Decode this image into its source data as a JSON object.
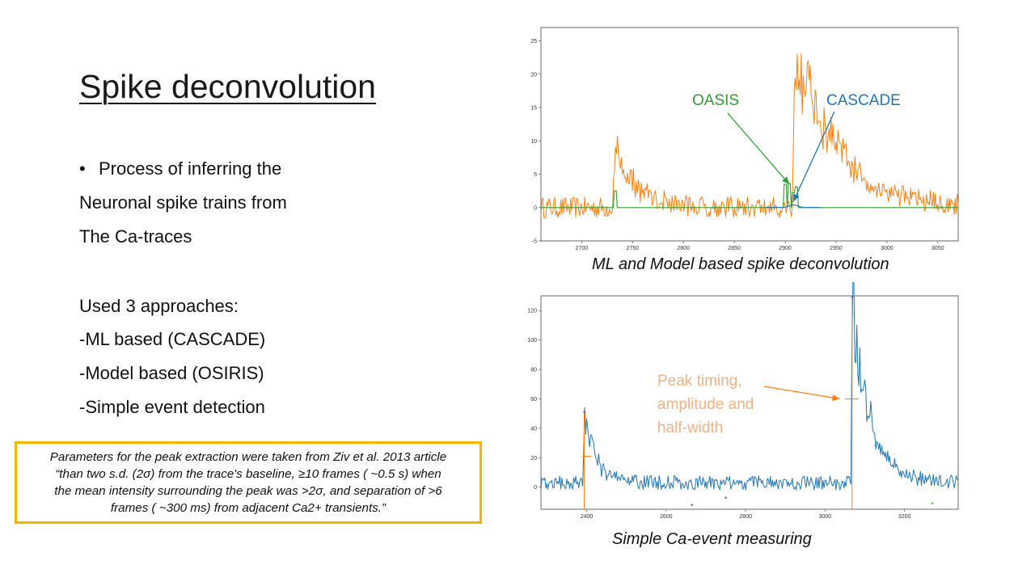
{
  "slide": {
    "title": "Spike deconvolution",
    "bullet_lines": [
      "Process of inferring the",
      "Neuronal spike trains from",
      "The Ca-traces"
    ],
    "approaches_heading": "Used 3 approaches:",
    "approaches": [
      "-ML based (CASCADE)",
      "-Model based (OSIRIS)",
      "-Simple event detection"
    ],
    "quote_lines": [
      "Parameters for the peak extraction were taken from Ziv et al. 2013 article",
      "“than two s.d. (2σ) from the trace's baseline, ≥10 frames ( ~0.5 s) when",
      "the mean intensity surrounding the peak was >2σ, and separation of >6",
      "frames ( ~300 ms) from adjacent Ca2+ transients.”"
    ],
    "caption_top": "ML and Model based spike deconvolution",
    "caption_bottom": "Simple Ca-event measuring",
    "colors": {
      "orange": "#ff7f0e",
      "green": "#2ca02c",
      "blue": "#1f77b4",
      "peach": "#f4b183",
      "border": "#f2b600"
    }
  },
  "chart_data": [
    {
      "type": "line",
      "title": "",
      "xlim": [
        2660,
        3070
      ],
      "ylim": [
        -5,
        27
      ],
      "x_ticks": [
        2700,
        2750,
        2800,
        2850,
        2900,
        2950,
        3000,
        3050
      ],
      "y_ticks": [
        -5,
        0,
        5,
        10,
        15,
        20,
        25
      ],
      "annotations": [
        {
          "text": "OASIS",
          "color": "#2ca02c",
          "arrow_to": [
            2904,
            3.5
          ]
        },
        {
          "text": "CASCADE",
          "color": "#1f77b4",
          "arrow_to": [
            2908,
            0.4
          ]
        }
      ],
      "series": [
        {
          "color": "#ff7f0e",
          "events": [
            {
              "x": 2733,
              "amp": 8.5,
              "tau": 22
            },
            {
              "x": 2910,
              "amp": 24,
              "tau": 40
            }
          ],
          "noise": 1.0,
          "baseline": 0
        },
        {
          "color": "#2ca02c",
          "spikes": [
            [
              2733,
              2.5
            ],
            [
              2900,
              3.5
            ],
            [
              2904,
              3.6
            ],
            [
              2908,
              2.2
            ],
            [
              2911,
              3.1
            ]
          ]
        },
        {
          "color": "#1f77b4",
          "bumps": [
            [
              2908,
              0.4
            ]
          ]
        }
      ]
    },
    {
      "type": "line",
      "title": "",
      "xlim": [
        2285,
        3335
      ],
      "ylim": [
        -15,
        130
      ],
      "x_ticks": [
        2400,
        2600,
        2800,
        3000,
        3200
      ],
      "y_ticks": [
        0,
        20,
        40,
        60,
        80,
        100,
        120
      ],
      "annotation": {
        "lines": [
          "Peak timing,",
          "amplitude and",
          "half-width"
        ],
        "color": "#f4b183",
        "arrow_to": [
          3045,
          60
        ]
      },
      "series": [
        {
          "color": "#1f77b4",
          "events": [
            {
              "x": 2394,
              "amp": 48,
              "tau": 28
            },
            {
              "x": 3068,
              "amp": 120,
              "tau": 45
            }
          ],
          "noise": 3.0,
          "baseline": 3
        }
      ],
      "peaks": [
        {
          "x": 2394,
          "y": 50,
          "half_width_y": 21,
          "half_left": 2388,
          "half_right": 2412
        },
        {
          "x": 3068,
          "y": 128,
          "half_width_y": 60,
          "half_left": 3050,
          "half_right": 3085
        }
      ],
      "minima": [
        [
          2665,
          -13
        ],
        [
          2750,
          -8
        ],
        [
          3270,
          -12
        ]
      ]
    }
  ]
}
